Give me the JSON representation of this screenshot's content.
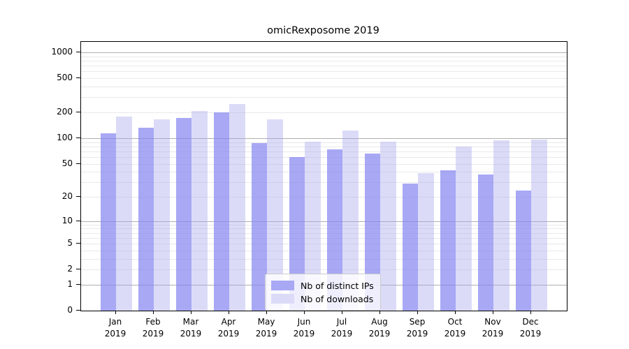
{
  "title": "omicRexposome 2019",
  "chart_data": {
    "type": "bar",
    "title": "omicRexposome 2019",
    "categories": [
      "Jan",
      "Feb",
      "Mar",
      "Apr",
      "May",
      "Jun",
      "Jul",
      "Aug",
      "Sep",
      "Oct",
      "Nov",
      "Dec"
    ],
    "x_tick_year": "2019",
    "series": [
      {
        "name": "Nb of distinct IPs",
        "color": "#a8a8f5",
        "css_color": "rgba(131,131,241,0.7)",
        "values": [
          114,
          133,
          172,
          200,
          88,
          60,
          74,
          66,
          29,
          42,
          37,
          24
        ]
      },
      {
        "name": "Nb of downloads",
        "color": "#dbdbf8",
        "css_color": "rgba(165,165,238,0.4)",
        "values": [
          178,
          165,
          206,
          250,
          166,
          91,
          124,
          91,
          39,
          80,
          94,
          97
        ]
      }
    ],
    "y_scale": "log1p",
    "y_tick_labels": [
      "1000",
      "500",
      "200",
      "100",
      "50",
      "20",
      "10",
      "5",
      "2",
      "1",
      "0"
    ],
    "y_tick_values": [
      1000,
      500,
      200,
      100,
      50,
      20,
      10,
      5,
      2,
      1,
      0
    ],
    "ylim": [
      0,
      1270
    ],
    "grid": {
      "on": true,
      "major_values": [
        1,
        10,
        100,
        1000
      ],
      "minor_values": [
        2,
        3,
        4,
        5,
        6,
        7,
        8,
        9,
        20,
        30,
        40,
        50,
        60,
        70,
        80,
        90,
        200,
        300,
        400,
        500,
        600,
        700,
        800,
        900
      ],
      "major_color": "#b0b0b0",
      "minor_color": "#e9e9e9"
    },
    "legend_position": "lower center"
  },
  "colors": {
    "background": "#ffffff",
    "spine": "#000000",
    "text": "#000000"
  }
}
